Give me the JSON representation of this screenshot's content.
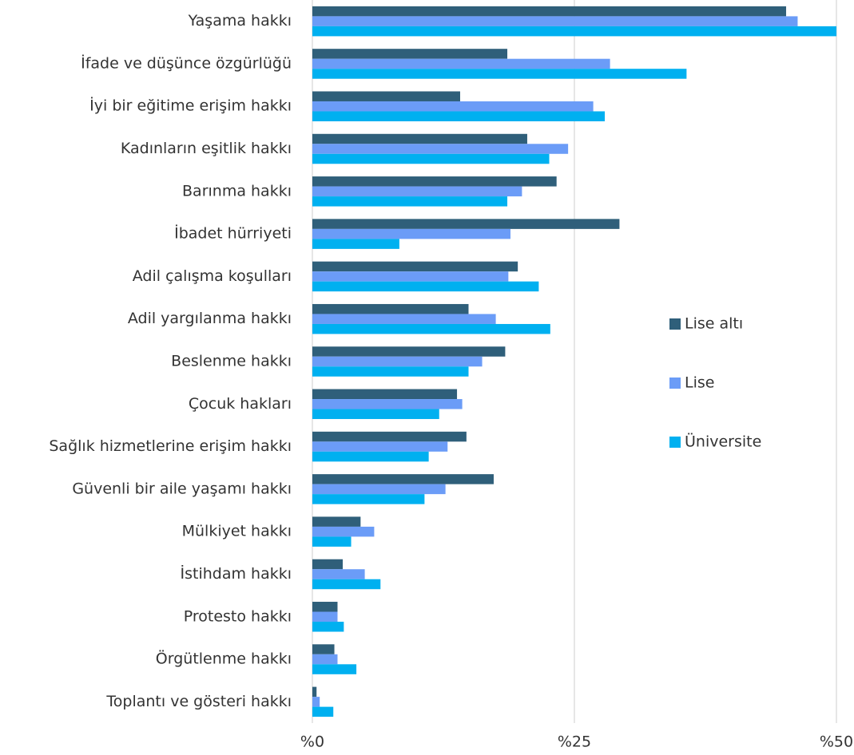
{
  "chart_data": {
    "type": "bar",
    "orientation": "horizontal",
    "categories": [
      "Yaşama hakkı",
      "İfade ve düşünce özgürlüğü",
      "İyi bir eğitime erişim hakkı",
      "Kadınların eşitlik hakkı",
      "Barınma hakkı",
      "İbadet hürriyeti",
      "Adil çalışma koşulları",
      "Adil yargılanma hakkı",
      "Beslenme hakkı",
      "Çocuk hakları",
      "Sağlık hizmetlerine erişim hakkı",
      "Güvenli bir aile yaşamı hakkı",
      "Mülkiyet hakkı",
      "İstihdam hakkı",
      "Protesto hakkı",
      "Örgütlenme hakkı",
      "Toplantı ve gösteri hakkı"
    ],
    "series": [
      {
        "name": "Lise altı",
        "color": "#2f5f7a",
        "values": [
          45.2,
          18.6,
          14.1,
          20.5,
          23.3,
          29.3,
          19.6,
          14.9,
          18.4,
          13.8,
          14.7,
          17.3,
          4.6,
          2.9,
          2.4,
          2.1,
          0.4
        ]
      },
      {
        "name": "Lise",
        "color": "#6b9cf7",
        "values": [
          46.3,
          28.4,
          26.8,
          24.4,
          20.0,
          18.9,
          18.7,
          17.5,
          16.2,
          14.3,
          12.9,
          12.7,
          5.9,
          5.0,
          2.4,
          2.4,
          0.7
        ]
      },
      {
        "name": "Üniversite",
        "color": "#00b0f0",
        "values": [
          50.0,
          35.7,
          27.9,
          22.6,
          18.6,
          8.3,
          21.6,
          22.7,
          14.9,
          12.1,
          11.1,
          10.7,
          3.7,
          6.5,
          3.0,
          4.2,
          2.0
        ]
      }
    ],
    "xlim": [
      0,
      50
    ],
    "xticks": [
      {
        "value": 0,
        "label": "%0"
      },
      {
        "value": 25,
        "label": "%25"
      },
      {
        "value": 50,
        "label": "%50"
      }
    ],
    "grid": true,
    "legend": "right"
  }
}
